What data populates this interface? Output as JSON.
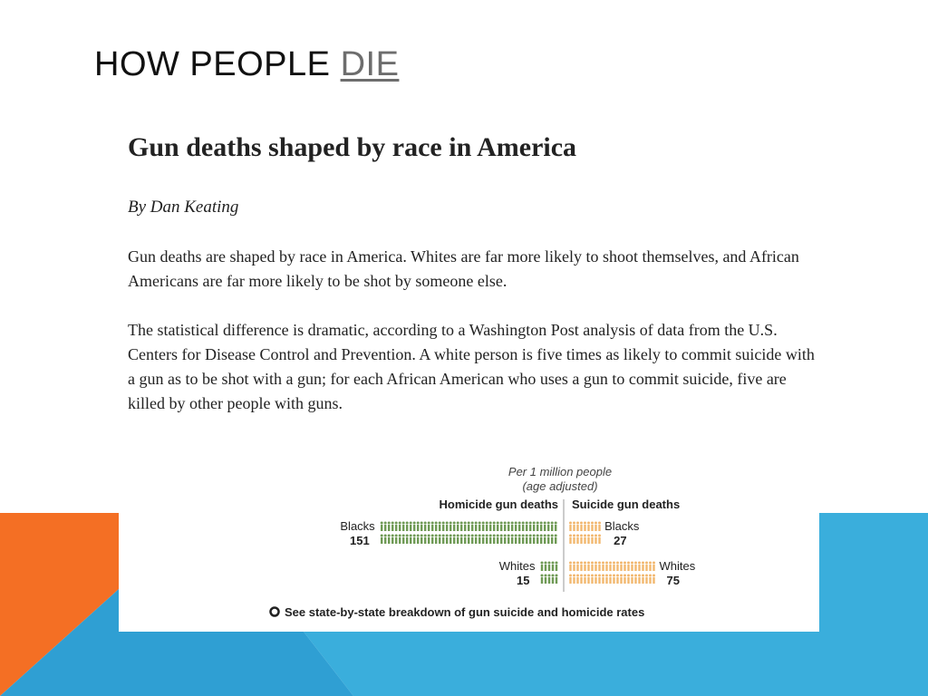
{
  "slide": {
    "title_prefix": "HOW PEOPLE ",
    "title_link": "DIE",
    "colors": {
      "orange": "#f46f24",
      "blue": "#3aaedc",
      "mid_blue": "#2b92c4"
    }
  },
  "article": {
    "title": "Gun deaths shaped by race in America",
    "byline": "By Dan Keating",
    "paragraphs": [
      "Gun deaths are shaped by race in America. Whites are far more likely to shoot themselves, and African Americans are far more likely to be shot by someone else.",
      "The statistical difference is dramatic, according to a Washington Post analysis of data from the U.S. Centers for Disease Control and Prevention. A white person is five times as likely to commit suicide with a gun as to be shot with a gun; for each African American who uses a gun to commit suicide, five are killed by other people with guns."
    ]
  },
  "chart_data": {
    "type": "bar",
    "subtitle_line1": "Per 1 million people",
    "subtitle_line2": "(age adjusted)",
    "left_header": "Homicide gun deaths",
    "right_header": "Suicide gun deaths",
    "categories": [
      "Blacks",
      "Whites"
    ],
    "series": [
      {
        "name": "Homicide gun deaths",
        "values": [
          151,
          15
        ],
        "color": "#6f9a55"
      },
      {
        "name": "Suicide gun deaths",
        "values": [
          27,
          75
        ],
        "color": "#f2b870"
      }
    ],
    "footer_link": "See state-by-state breakdown of gun suicide and homicide rates"
  }
}
